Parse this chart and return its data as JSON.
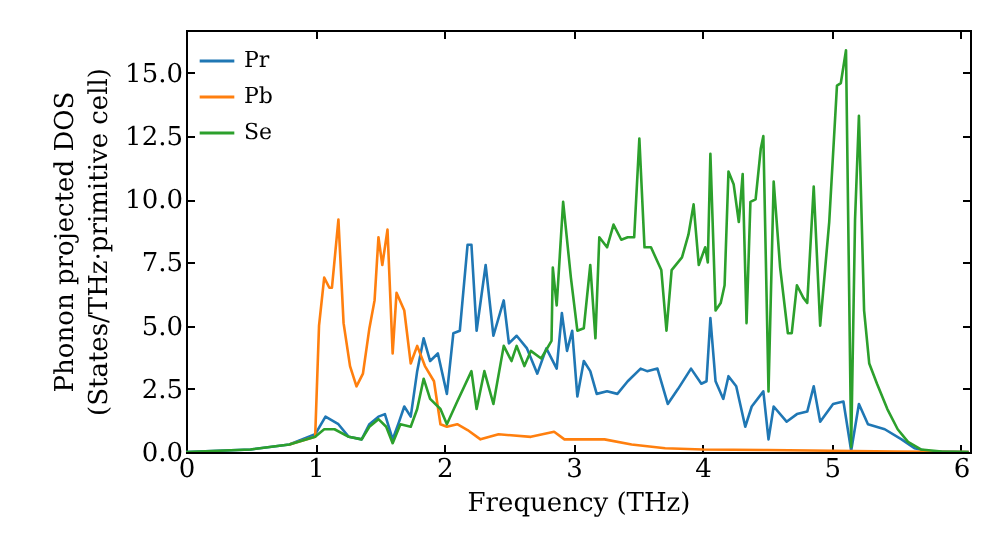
{
  "chart_data": {
    "type": "line",
    "xlabel": "Frequency (THz)",
    "ylabel": "Phonon projected DOS\n(States/THz·primitive cell)",
    "xlim": [
      0,
      6.07
    ],
    "ylim": [
      0,
      16.7
    ],
    "xticks": [
      0,
      1,
      2,
      3,
      4,
      5,
      6
    ],
    "yticks": [
      {
        "value": 0,
        "label": "0.0"
      },
      {
        "value": 2.5,
        "label": "2.5"
      },
      {
        "value": 5,
        "label": "5.0"
      },
      {
        "value": 7.5,
        "label": "7.5"
      },
      {
        "value": 10,
        "label": "10.0"
      },
      {
        "value": 12.5,
        "label": "12.5"
      },
      {
        "value": 15,
        "label": "15.0"
      }
    ],
    "legend": "top left",
    "grid": false,
    "series": [
      {
        "name": "Pr",
        "color": "#1f77b4",
        "x": [
          0,
          0.5,
          0.8,
          1.0,
          1.08,
          1.13,
          1.18,
          1.26,
          1.36,
          1.42,
          1.49,
          1.54,
          1.6,
          1.65,
          1.69,
          1.74,
          1.79,
          1.84,
          1.89,
          1.95,
          2.02,
          2.07,
          2.12,
          2.18,
          2.21,
          2.25,
          2.32,
          2.38,
          2.46,
          2.5,
          2.56,
          2.64,
          2.72,
          2.79,
          2.87,
          2.91,
          2.95,
          2.99,
          3.03,
          3.08,
          3.13,
          3.18,
          3.26,
          3.34,
          3.42,
          3.52,
          3.57,
          3.65,
          3.73,
          3.81,
          3.91,
          3.99,
          4.03,
          4.06,
          4.1,
          4.16,
          4.2,
          4.26,
          4.33,
          4.38,
          4.47,
          4.51,
          4.55,
          4.65,
          4.73,
          4.81,
          4.86,
          4.91,
          5.01,
          5.09,
          5.15,
          5.21,
          5.28,
          5.41,
          5.54,
          5.64,
          5.75,
          6.06
        ],
        "values": [
          0,
          0.1,
          0.3,
          0.7,
          1.4,
          1.25,
          1.1,
          0.6,
          0.5,
          1.1,
          1.4,
          1.5,
          0.5,
          1.2,
          1.8,
          1.4,
          3.2,
          4.5,
          3.6,
          3.9,
          2.3,
          4.7,
          4.8,
          8.2,
          8.2,
          4.8,
          7.4,
          4.6,
          6.0,
          4.3,
          4.6,
          4.1,
          3.1,
          4.1,
          3.3,
          5.5,
          4.0,
          4.8,
          2.2,
          3.6,
          3.2,
          2.3,
          2.4,
          2.3,
          2.8,
          3.3,
          3.2,
          3.3,
          1.9,
          2.5,
          3.3,
          2.7,
          2.8,
          5.3,
          2.8,
          2.1,
          3.0,
          2.6,
          1.0,
          1.8,
          2.4,
          0.5,
          1.8,
          1.2,
          1.5,
          1.6,
          2.6,
          1.2,
          1.9,
          2.0,
          0.05,
          1.9,
          1.1,
          0.9,
          0.5,
          0.15,
          0.03,
          0
        ]
      },
      {
        "name": "Pb",
        "color": "#ff7f0e",
        "x": [
          0.8,
          1.0,
          1.03,
          1.07,
          1.11,
          1.13,
          1.18,
          1.22,
          1.27,
          1.32,
          1.37,
          1.42,
          1.46,
          1.49,
          1.52,
          1.56,
          1.6,
          1.63,
          1.69,
          1.74,
          1.79,
          1.85,
          1.92,
          1.97,
          2.02,
          2.1,
          2.18,
          2.28,
          2.42,
          2.67,
          2.85,
          2.93,
          3.24,
          3.45,
          3.71,
          4.0,
          4.5,
          5.0,
          5.5,
          6.06
        ],
        "values": [
          0.3,
          0.6,
          5.0,
          6.9,
          6.5,
          6.5,
          9.2,
          5.1,
          3.4,
          2.6,
          3.1,
          4.9,
          6.0,
          8.5,
          7.4,
          8.8,
          3.9,
          6.3,
          5.6,
          3.5,
          4.2,
          3.4,
          2.8,
          1.1,
          1.0,
          1.1,
          0.87,
          0.5,
          0.7,
          0.6,
          0.8,
          0.5,
          0.5,
          0.3,
          0.15,
          0.1,
          0.08,
          0.05,
          0.02,
          0
        ]
      },
      {
        "name": "Se",
        "color": "#2ca02c",
        "x": [
          0,
          0.5,
          0.8,
          1.0,
          1.07,
          1.15,
          1.26,
          1.36,
          1.42,
          1.49,
          1.55,
          1.6,
          1.66,
          1.74,
          1.79,
          1.84,
          1.89,
          1.97,
          2.02,
          2.1,
          2.21,
          2.25,
          2.31,
          2.38,
          2.46,
          2.52,
          2.56,
          2.62,
          2.67,
          2.75,
          2.83,
          2.84,
          2.87,
          2.92,
          2.98,
          3.03,
          3.08,
          3.13,
          3.17,
          3.2,
          3.26,
          3.31,
          3.37,
          3.42,
          3.47,
          3.51,
          3.55,
          3.6,
          3.68,
          3.72,
          3.76,
          3.84,
          3.89,
          3.93,
          3.97,
          4.02,
          4.04,
          4.06,
          4.1,
          4.14,
          4.17,
          4.2,
          4.24,
          4.28,
          4.31,
          4.34,
          4.37,
          4.41,
          4.45,
          4.47,
          4.51,
          4.55,
          4.6,
          4.66,
          4.69,
          4.73,
          4.78,
          4.81,
          4.86,
          4.91,
          4.98,
          5.04,
          5.07,
          5.11,
          5.15,
          5.18,
          5.21,
          5.25,
          5.29,
          5.35,
          5.43,
          5.51,
          5.59,
          5.69,
          5.85,
          6.06
        ],
        "values": [
          0,
          0.1,
          0.3,
          0.6,
          0.9,
          0.9,
          0.6,
          0.5,
          1.0,
          1.3,
          1.0,
          0.35,
          1.1,
          1.0,
          1.7,
          2.9,
          2.1,
          1.7,
          1.1,
          2.0,
          3.2,
          1.7,
          3.2,
          1.9,
          4.2,
          3.6,
          4.2,
          3.4,
          4.0,
          3.7,
          4.4,
          7.3,
          5.8,
          9.9,
          6.9,
          4.8,
          4.9,
          7.4,
          4.5,
          8.5,
          8.1,
          9.0,
          8.4,
          8.5,
          8.5,
          12.4,
          8.1,
          8.1,
          7.2,
          4.8,
          7.2,
          7.7,
          8.6,
          9.8,
          7.4,
          8.1,
          7.5,
          11.8,
          5.6,
          5.9,
          6.6,
          11.1,
          10.6,
          9.1,
          11.0,
          5.1,
          9.9,
          10.0,
          12.0,
          12.5,
          2.4,
          10.7,
          7.3,
          4.7,
          4.7,
          6.6,
          6.1,
          5.9,
          10.5,
          5.0,
          9.1,
          14.5,
          14.6,
          15.9,
          0.2,
          9.2,
          13.3,
          5.6,
          3.5,
          2.7,
          1.7,
          0.9,
          0.4,
          0.1,
          0.02,
          0
        ]
      }
    ]
  }
}
